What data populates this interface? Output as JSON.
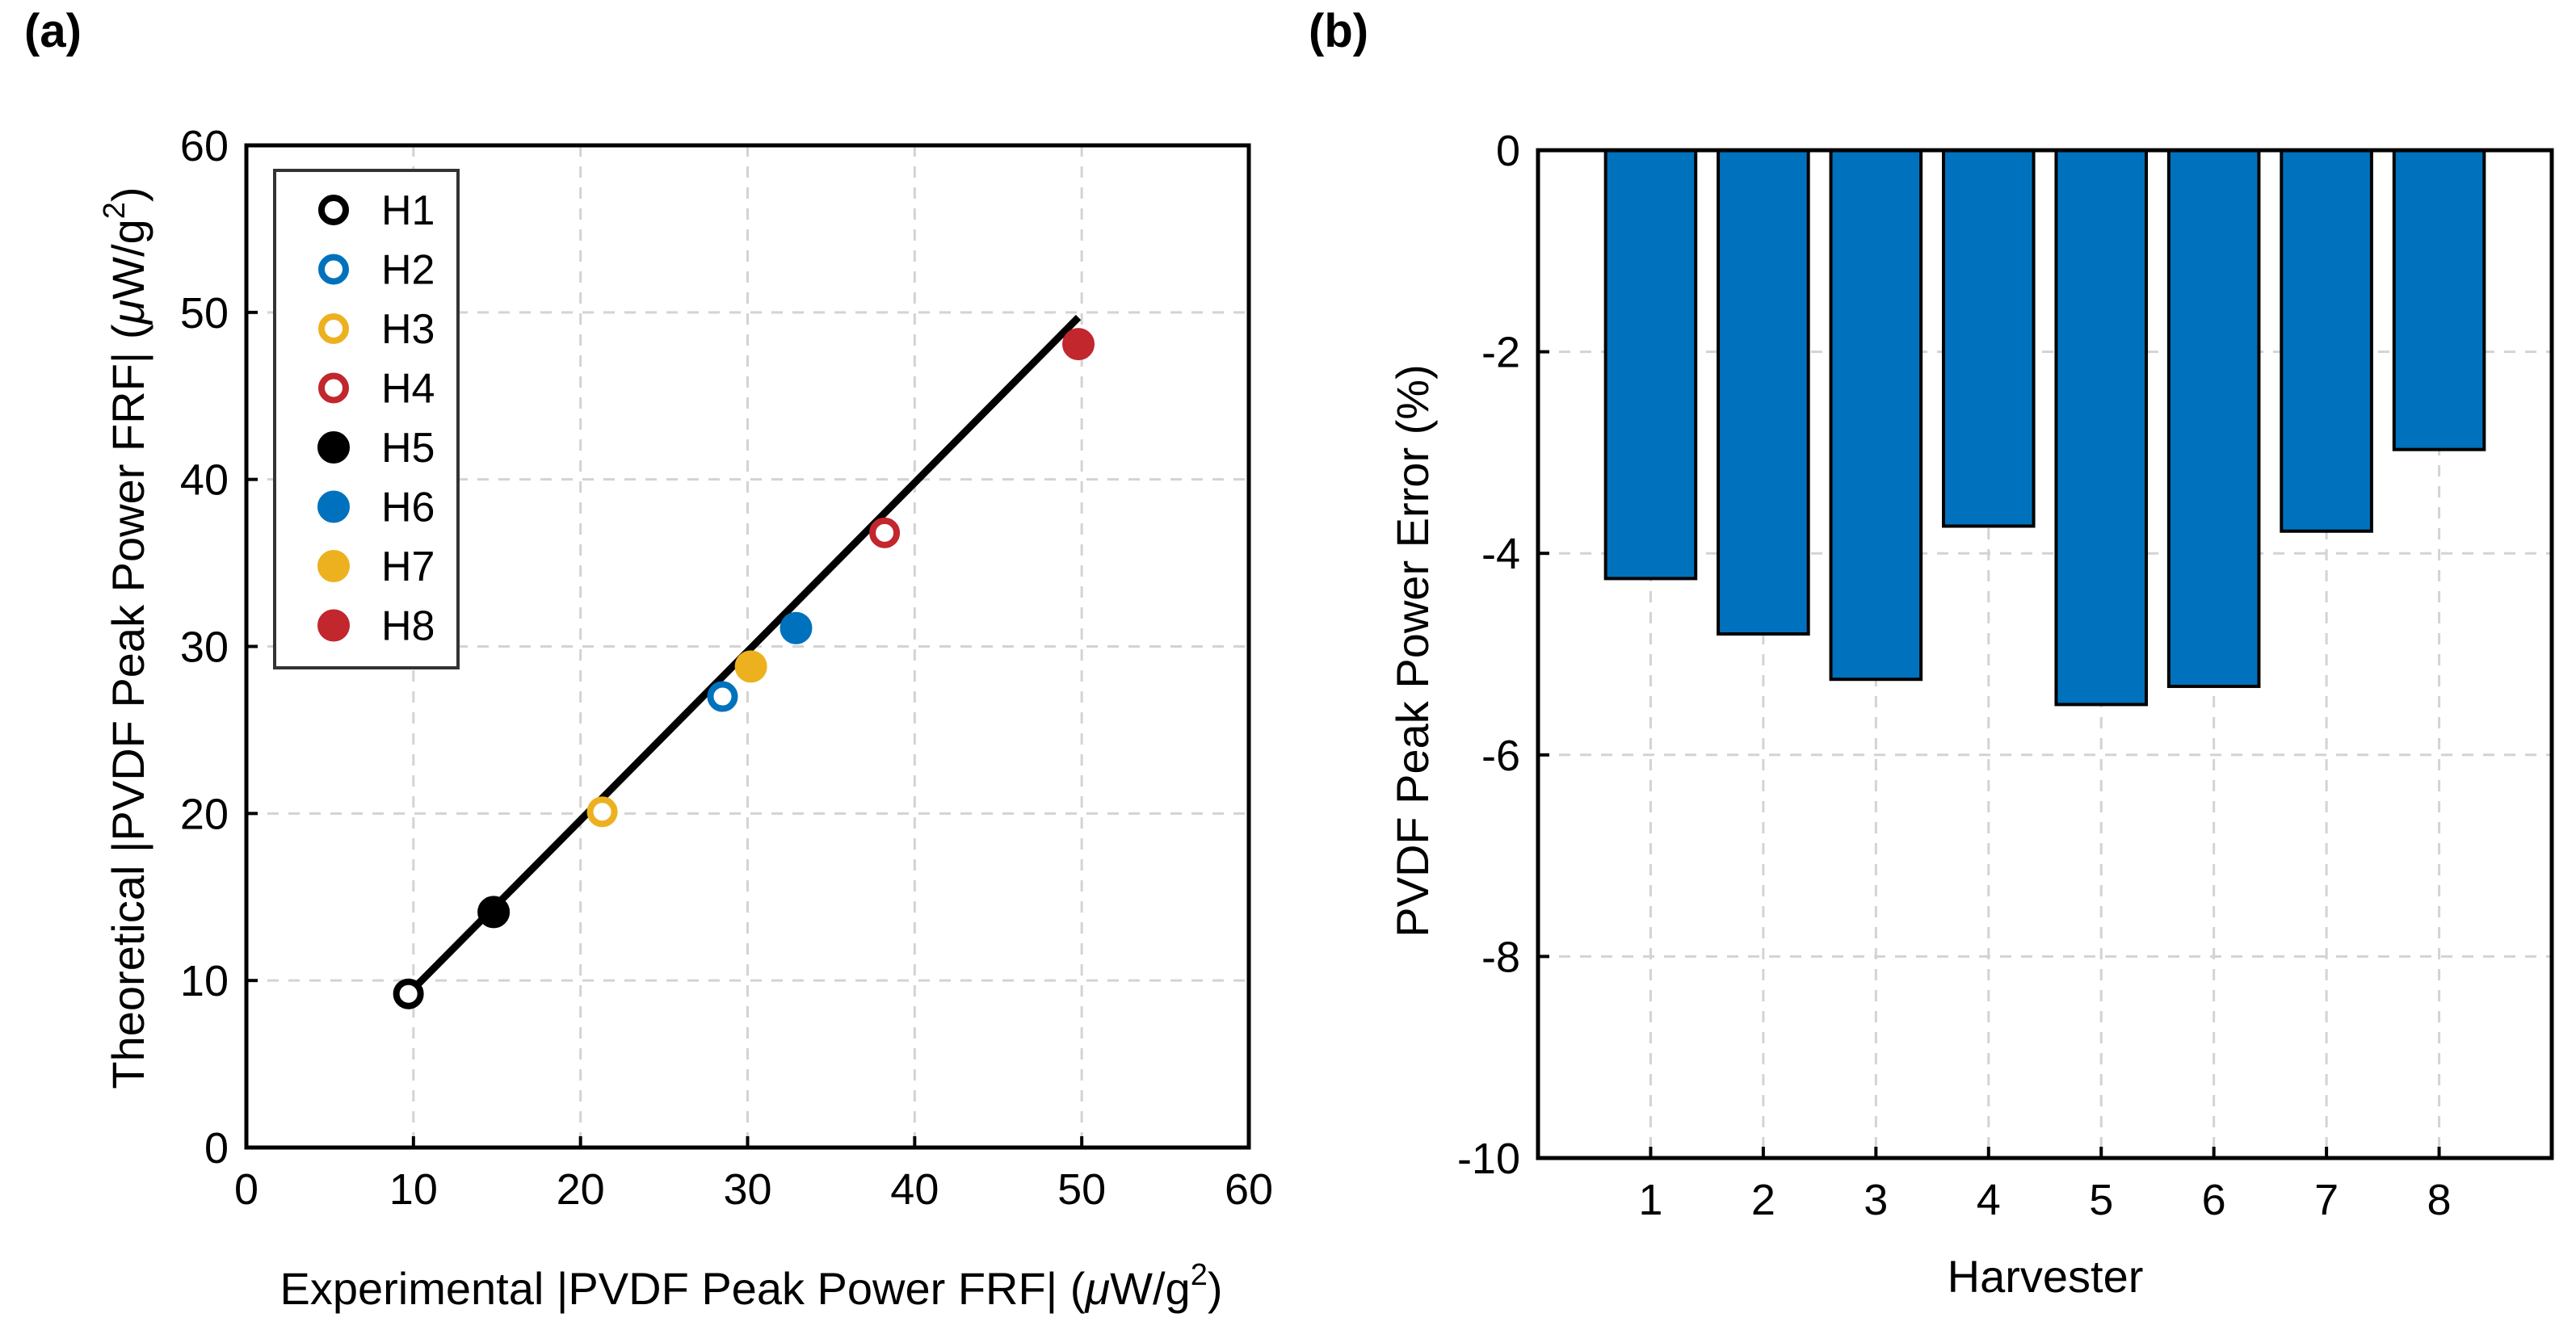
{
  "colors": {
    "bar": "#0072BD",
    "fit_line": "#000000",
    "grid": "#d3d3d3"
  },
  "chart_data": [
    {
      "panel": "(a)",
      "type": "scatter",
      "xlabel_main": "Experimental |PVDF Peak Power FRF| (",
      "xlabel_mu": "μ",
      "xlabel_unit": "W/g",
      "xlabel_sup": "2",
      "xlabel_close": ")",
      "ylabel_main": "Theoretical |PVDF Peak Power FRF| (",
      "ylabel_mu": "μ",
      "ylabel_unit": "W/g",
      "ylabel_sup": "2",
      "ylabel_close": ")",
      "xlim": [
        0,
        60
      ],
      "ylim": [
        0,
        60
      ],
      "xticks": [
        0,
        10,
        20,
        30,
        40,
        50,
        60
      ],
      "yticks": [
        0,
        10,
        20,
        30,
        40,
        50,
        60
      ],
      "grid": true,
      "legend_position": "top-left",
      "series": [
        {
          "name": "H1",
          "x": 9.7,
          "y": 9.2,
          "color": "#000000",
          "marker": "open-circle"
        },
        {
          "name": "H2",
          "x": 28.5,
          "y": 27.0,
          "color": "#0072BD",
          "marker": "open-circle"
        },
        {
          "name": "H3",
          "x": 21.3,
          "y": 20.1,
          "color": "#EDB120",
          "marker": "open-circle"
        },
        {
          "name": "H4",
          "x": 38.2,
          "y": 36.8,
          "color": "#C1272D",
          "marker": "open-circle"
        },
        {
          "name": "H5",
          "x": 14.8,
          "y": 14.1,
          "color": "#000000",
          "marker": "filled-circle"
        },
        {
          "name": "H6",
          "x": 32.9,
          "y": 31.1,
          "color": "#0072BD",
          "marker": "filled-circle"
        },
        {
          "name": "H7",
          "x": 30.2,
          "y": 28.8,
          "color": "#EDB120",
          "marker": "filled-circle"
        },
        {
          "name": "H8",
          "x": 49.8,
          "y": 48.1,
          "color": "#C1272D",
          "marker": "filled-circle"
        }
      ],
      "fit_line": {
        "x": [
          9.7,
          49.8
        ],
        "y": [
          9.2,
          49.7
        ]
      }
    },
    {
      "panel": "(b)",
      "type": "bar",
      "categories": [
        "1",
        "2",
        "3",
        "4",
        "5",
        "6",
        "7",
        "8"
      ],
      "values": [
        -4.25,
        -4.8,
        -5.25,
        -3.73,
        -5.5,
        -5.32,
        -3.78,
        -2.97
      ],
      "xlabel": "Harvester",
      "ylabel": "PVDF Peak Power Error (%)",
      "ylim": [
        -10,
        0
      ],
      "yticks": [
        0,
        -2,
        -4,
        -6,
        -8,
        -10
      ],
      "grid": true
    }
  ]
}
